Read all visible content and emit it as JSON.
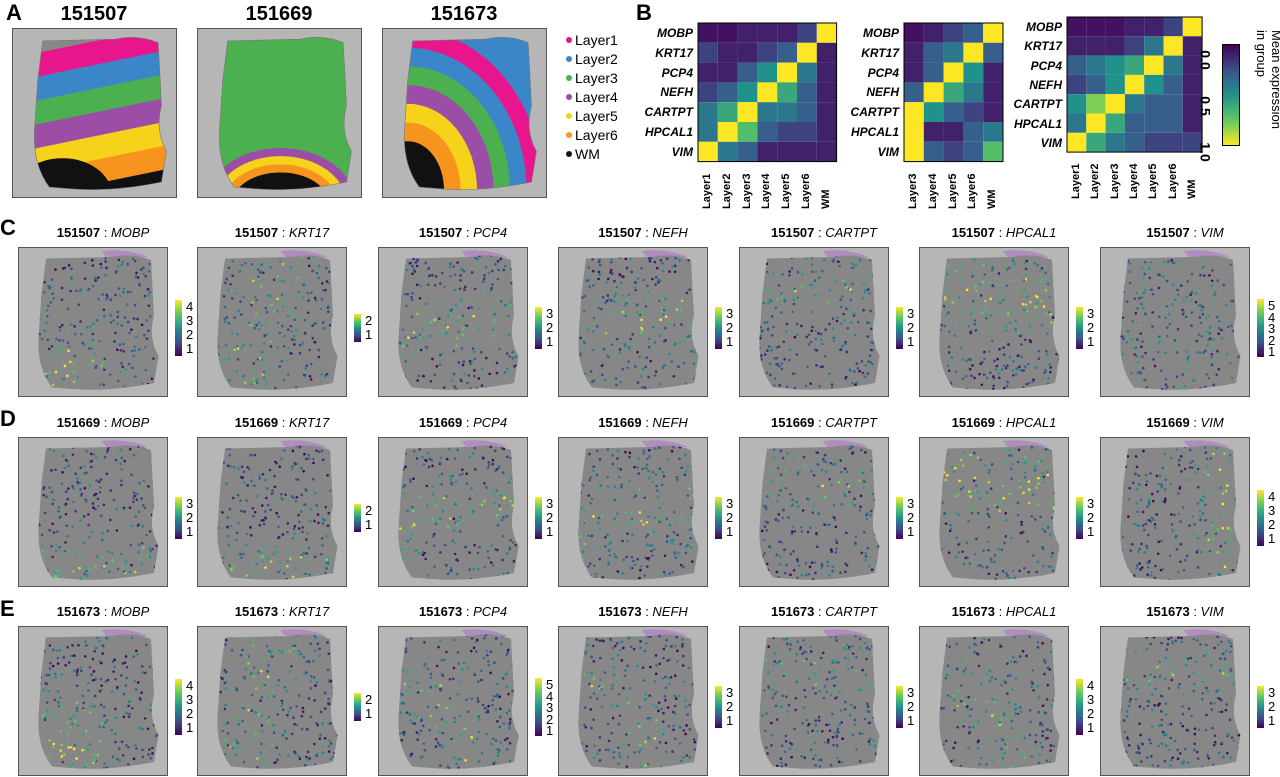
{
  "panels": {
    "A": "A",
    "B": "B",
    "C": "C",
    "D": "D",
    "E": "E"
  },
  "sectionA": {
    "samples": [
      "151507",
      "151669",
      "151673"
    ],
    "legend": [
      {
        "label": "Layer1",
        "color": "#e8168c"
      },
      {
        "label": "Layer2",
        "color": "#3b86c9"
      },
      {
        "label": "Layer3",
        "color": "#4caf50"
      },
      {
        "label": "Layer4",
        "color": "#9c4ea6"
      },
      {
        "label": "Layer5",
        "color": "#f6d21a"
      },
      {
        "label": "Layer6",
        "color": "#f7941d"
      },
      {
        "label": "WM",
        "color": "#111111"
      }
    ]
  },
  "sectionB": {
    "colorbar_label": "Mean expression\nin group",
    "colorbar_ticks": [
      "0.0",
      "0.5",
      "1.0"
    ],
    "heatmaps": [
      {
        "genes": [
          "MOBP",
          "KRT17",
          "PCP4",
          "NEFH",
          "CARTPT",
          "HPCAL1",
          "VIM"
        ],
        "layers": [
          "Layer1",
          "Layer2",
          "Layer3",
          "Layer4",
          "Layer5",
          "Layer6",
          "WM"
        ],
        "values": [
          [
            0.05,
            0.05,
            0.1,
            0.1,
            0.1,
            0.2,
            1.0
          ],
          [
            0.2,
            0.1,
            0.1,
            0.2,
            0.3,
            1.0,
            0.1
          ],
          [
            0.1,
            0.1,
            0.3,
            0.5,
            1.0,
            0.4,
            0.1
          ],
          [
            0.2,
            0.3,
            0.5,
            1.0,
            0.6,
            0.3,
            0.1
          ],
          [
            0.4,
            0.6,
            1.0,
            0.4,
            0.4,
            0.3,
            0.1
          ],
          [
            0.4,
            1.0,
            0.7,
            0.3,
            0.2,
            0.2,
            0.1
          ],
          [
            1.0,
            0.4,
            0.3,
            0.1,
            0.1,
            0.1,
            0.1
          ]
        ]
      },
      {
        "genes": [
          "MOBP",
          "KRT17",
          "PCP4",
          "NEFH",
          "CARTPT",
          "HPCAL1",
          "VIM"
        ],
        "layers": [
          "Layer3",
          "Layer4",
          "Layer5",
          "Layer6",
          "WM"
        ],
        "values": [
          [
            0.05,
            0.1,
            0.2,
            0.3,
            1.0
          ],
          [
            0.1,
            0.3,
            0.4,
            1.0,
            0.3
          ],
          [
            0.1,
            0.3,
            1.0,
            0.5,
            0.1
          ],
          [
            0.3,
            1.0,
            0.6,
            0.4,
            0.1
          ],
          [
            1.0,
            0.5,
            0.3,
            0.2,
            0.1
          ],
          [
            1.0,
            0.1,
            0.1,
            0.3,
            0.4
          ],
          [
            1.0,
            0.3,
            0.2,
            0.3,
            0.7
          ]
        ]
      },
      {
        "genes": [
          "MOBP",
          "KRT17",
          "PCP4",
          "NEFH",
          "CARTPT",
          "HPCAL1",
          "VIM"
        ],
        "layers": [
          "Layer1",
          "Layer2",
          "Layer3",
          "Layer4",
          "Layer5",
          "Layer6",
          "WM"
        ],
        "values": [
          [
            0.05,
            0.05,
            0.05,
            0.1,
            0.1,
            0.2,
            1.0
          ],
          [
            0.1,
            0.1,
            0.1,
            0.2,
            0.4,
            1.0,
            0.1
          ],
          [
            0.3,
            0.4,
            0.5,
            0.6,
            1.0,
            0.4,
            0.1
          ],
          [
            0.2,
            0.3,
            0.5,
            1.0,
            0.5,
            0.3,
            0.1
          ],
          [
            0.5,
            0.8,
            1.0,
            0.4,
            0.3,
            0.3,
            0.1
          ],
          [
            0.4,
            1.0,
            0.6,
            0.3,
            0.3,
            0.3,
            0.1
          ],
          [
            1.0,
            0.6,
            0.4,
            0.3,
            0.2,
            0.2,
            0.2
          ]
        ]
      }
    ]
  },
  "rows": [
    {
      "sample": "151507",
      "plots": [
        {
          "gene": "MOBP",
          "ticks": [
            "4",
            "3",
            "2",
            "1"
          ],
          "hot": "bottomleft"
        },
        {
          "gene": "KRT17",
          "ticks": [
            "2",
            "1"
          ],
          "hot": "left"
        },
        {
          "gene": "PCP4",
          "ticks": [
            "3",
            "2",
            "1"
          ],
          "hot": "band"
        },
        {
          "gene": "NEFH",
          "ticks": [
            "3",
            "2",
            "1"
          ],
          "hot": "band"
        },
        {
          "gene": "CARTPT",
          "ticks": [
            "3",
            "2",
            "1"
          ],
          "hot": "top"
        },
        {
          "gene": "HPCAL1",
          "ticks": [
            "3",
            "2",
            "1"
          ],
          "hot": "topbright"
        },
        {
          "gene": "VIM",
          "ticks": [
            "5",
            "4",
            "3",
            "2",
            "1"
          ],
          "hot": "uniform"
        }
      ]
    },
    {
      "sample": "151669",
      "plots": [
        {
          "gene": "MOBP",
          "ticks": [
            "3",
            "2",
            "1"
          ],
          "hot": "bottom"
        },
        {
          "gene": "KRT17",
          "ticks": [
            "2",
            "1"
          ],
          "hot": "bottom"
        },
        {
          "gene": "PCP4",
          "ticks": [
            "3",
            "2",
            "1"
          ],
          "hot": "band"
        },
        {
          "gene": "NEFH",
          "ticks": [
            "3",
            "2",
            "1"
          ],
          "hot": "band"
        },
        {
          "gene": "CARTPT",
          "ticks": [
            "3",
            "2",
            "1"
          ],
          "hot": "top"
        },
        {
          "gene": "HPCAL1",
          "ticks": [
            "3",
            "2",
            "1"
          ],
          "hot": "topbright"
        },
        {
          "gene": "VIM",
          "ticks": [
            "4",
            "3",
            "2",
            "1"
          ],
          "hot": "right"
        }
      ]
    },
    {
      "sample": "151673",
      "plots": [
        {
          "gene": "MOBP",
          "ticks": [
            "4",
            "3",
            "2",
            "1"
          ],
          "hot": "bottomleftbright"
        },
        {
          "gene": "KRT17",
          "ticks": [
            "2",
            "1"
          ],
          "hot": "left"
        },
        {
          "gene": "PCP4",
          "ticks": [
            "5",
            "4",
            "3",
            "2",
            "1"
          ],
          "hot": "arc"
        },
        {
          "gene": "NEFH",
          "ticks": [
            "3",
            "2",
            "1"
          ],
          "hot": "arc"
        },
        {
          "gene": "CARTPT",
          "ticks": [
            "3",
            "2",
            "1"
          ],
          "hot": "top"
        },
        {
          "gene": "HPCAL1",
          "ticks": [
            "4",
            "3",
            "2",
            "1"
          ],
          "hot": "arc"
        },
        {
          "gene": "VIM",
          "ticks": [
            "3",
            "2",
            "1"
          ],
          "hot": "top"
        }
      ]
    }
  ]
}
